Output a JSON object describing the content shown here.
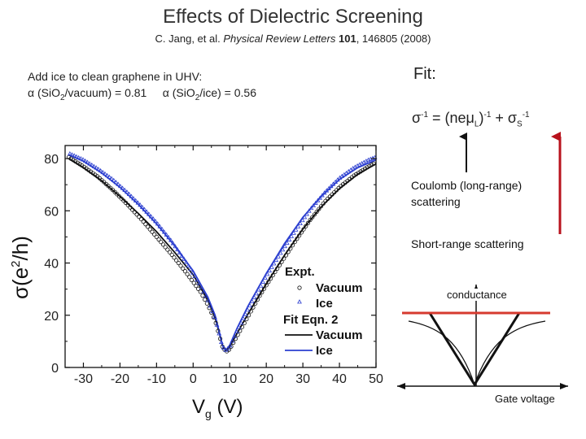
{
  "slide": {
    "title": "Effects of Dielectric Screening",
    "citation": {
      "authors": "C. Jang, et al.",
      "journal": "Physical Review Letters",
      "volume": "101",
      "pages": ", 146805 (2008)"
    },
    "intro": {
      "line1": "Add ice to clean graphene in UHV:",
      "alpha_vac_prefix": "α (SiO",
      "alpha_vac_sub": "2",
      "alpha_vac_suffix": "/vacuum) = 0.81",
      "alpha_ice_prefix": "α (SiO",
      "alpha_ice_sub": "2",
      "alpha_ice_suffix": "/ice) = 0.56"
    },
    "fit": {
      "label": "Fit:",
      "eq_lhs": "σ",
      "eq_lhs_sup": "-1",
      "eq_mid": " = (neμ",
      "eq_mid_sub": "L",
      "eq_mid_close": ")",
      "eq_mid_sup": "-1",
      "eq_plus": " + σ",
      "eq_s_sub": "S",
      "eq_s_sup": "-1"
    },
    "coulomb_label": "Coulomb (long-range) scattering",
    "short_range_label": "Short-range scattering",
    "schematic": {
      "y_label": "conductance",
      "x_label": "Gate voltage",
      "highlight_color": "#d63a2f",
      "arrow_color": "#b8121c"
    }
  },
  "chart_data": {
    "type": "scatter",
    "xlabel": "V",
    "xlabel_sub": "g",
    "xlabel_unit": " (V)",
    "ylabel": "σ (e²/h)",
    "ylabel_parts": [
      "σ",
      "(",
      "e",
      "2",
      "/",
      "h",
      ")"
    ],
    "xlim": [
      -35,
      50
    ],
    "ylim": [
      0,
      85
    ],
    "xticks": [
      -30,
      -20,
      -10,
      0,
      10,
      20,
      30,
      40,
      50
    ],
    "xtick_labels": [
      "-30",
      "-20",
      "-10",
      "0",
      "10",
      "20",
      "30",
      "40",
      "50"
    ],
    "yticks": [
      0,
      20,
      40,
      60,
      80
    ],
    "ytick_labels": [
      "0",
      "20",
      "40",
      "60",
      "80"
    ],
    "legend": {
      "expt_title": "Expt.",
      "fit_title": "Fit Eqn. 2",
      "vacuum": "Vacuum",
      "ice": "Ice",
      "placement": "bottom-right"
    },
    "colors": {
      "vacuum": "#111111",
      "ice": "#2c3fd0"
    },
    "series": [
      {
        "name": "Vacuum (Expt.)",
        "marker": "circle",
        "x": [
          -34,
          -30,
          -26,
          -22,
          -18,
          -14,
          -10,
          -6,
          -2,
          2,
          4,
          6,
          7,
          8,
          9,
          10,
          12,
          14,
          16,
          18,
          20,
          24,
          28,
          32,
          36,
          40,
          44,
          48,
          50
        ],
        "y": [
          80.5,
          77,
          73,
          68,
          62.5,
          56.5,
          50,
          43.5,
          36.5,
          29,
          24,
          18,
          13,
          8,
          6,
          7,
          12,
          17,
          22,
          27,
          31.5,
          40,
          48.5,
          56.5,
          63.5,
          69,
          73.5,
          77,
          78.5
        ]
      },
      {
        "name": "Ice (Expt.)",
        "marker": "triangle",
        "x": [
          -34,
          -30,
          -26,
          -22,
          -18,
          -14,
          -10,
          -6,
          -2,
          2,
          4,
          6,
          7,
          8,
          9,
          10,
          12,
          14,
          16,
          18,
          20,
          24,
          28,
          32,
          36,
          40,
          44,
          48,
          50
        ],
        "y": [
          82,
          79.5,
          76,
          72,
          67,
          61.5,
          55.5,
          48.5,
          40.5,
          31.5,
          26,
          19,
          13.5,
          8,
          6.5,
          8,
          14,
          19.5,
          25,
          30,
          35,
          44,
          52.5,
          60.5,
          67,
          72.5,
          76.5,
          79.5,
          80.5
        ]
      },
      {
        "name": "Vacuum (Fit Eqn. 2)",
        "line": true,
        "x": [
          -34,
          -30,
          -25,
          -20,
          -15,
          -10,
          -5,
          0,
          4,
          6,
          7,
          8,
          9,
          10,
          12,
          15,
          20,
          25,
          30,
          35,
          40,
          45,
          50
        ],
        "y": [
          80,
          76.5,
          71.5,
          65.5,
          59,
          52,
          44,
          35.5,
          26,
          19,
          14,
          8.5,
          6.5,
          8,
          13,
          20.5,
          32,
          43,
          53,
          61.5,
          68.5,
          74,
          78
        ]
      },
      {
        "name": "Ice (Fit Eqn. 2)",
        "line": true,
        "x": [
          -34,
          -30,
          -25,
          -20,
          -15,
          -10,
          -5,
          0,
          4,
          6,
          7,
          8,
          9,
          10,
          12,
          15,
          20,
          25,
          30,
          35,
          40,
          45,
          50
        ],
        "y": [
          81.5,
          79,
          74.5,
          69,
          62.5,
          55,
          46.5,
          37,
          27,
          20,
          14.5,
          8.5,
          6.5,
          8.5,
          15,
          23.5,
          36,
          47.5,
          57.5,
          65.5,
          72,
          76.5,
          79.5
        ]
      }
    ]
  }
}
